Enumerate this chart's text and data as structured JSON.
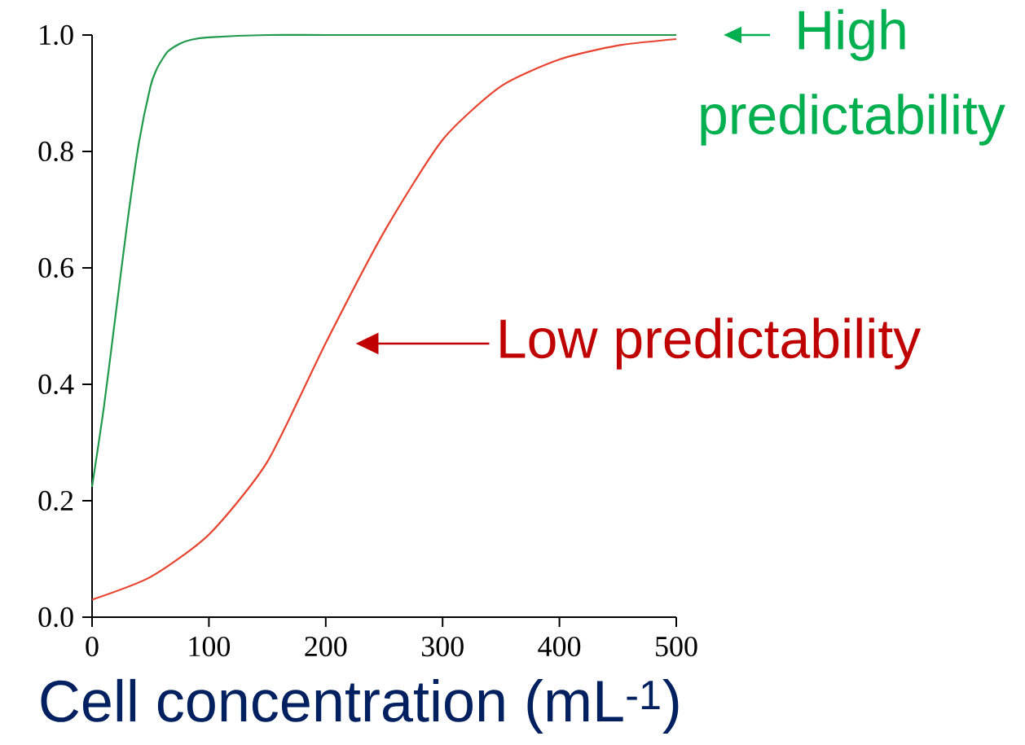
{
  "chart_data": {
    "type": "line",
    "xlabel": "Cell concentration (mL$^{-1}$)",
    "xlim": [
      0,
      500
    ],
    "ylim": [
      0,
      1.0
    ],
    "xticks": [
      0,
      100,
      200,
      300,
      400,
      500
    ],
    "yticks": [
      {
        "value": 0,
        "label": "0.0"
      },
      {
        "value": 0.2,
        "label": "0.2"
      },
      {
        "value": 0.4,
        "label": "0.4"
      },
      {
        "value": 0.6,
        "label": "0.6"
      },
      {
        "value": 0.8,
        "label": "0.8"
      },
      {
        "value": 1.0,
        "label": "1.0"
      }
    ],
    "grid": false,
    "marker": "none",
    "line_style": "solid",
    "series": [
      {
        "color": "#1e9a4a",
        "x": [
          0,
          10,
          20,
          30,
          40,
          50,
          55,
          60,
          65,
          75,
          85,
          100,
          150,
          200,
          300,
          400,
          500
        ],
        "values": [
          0.224,
          0.359,
          0.517,
          0.675,
          0.814,
          0.912,
          0.94,
          0.958,
          0.972,
          0.985,
          0.992,
          0.996,
          1.0,
          1.0,
          1.0,
          1.0,
          1.0
        ]
      },
      {
        "color": "#e8432e",
        "x": [
          0,
          50,
          100,
          150,
          200,
          250,
          300,
          350,
          400,
          450,
          500
        ],
        "values": [
          0.03,
          0.069,
          0.142,
          0.267,
          0.471,
          0.662,
          0.82,
          0.912,
          0.958,
          0.982,
          0.993
        ]
      }
    ],
    "annotations": [
      "High predictability",
      "Low predictability"
    ]
  }
}
